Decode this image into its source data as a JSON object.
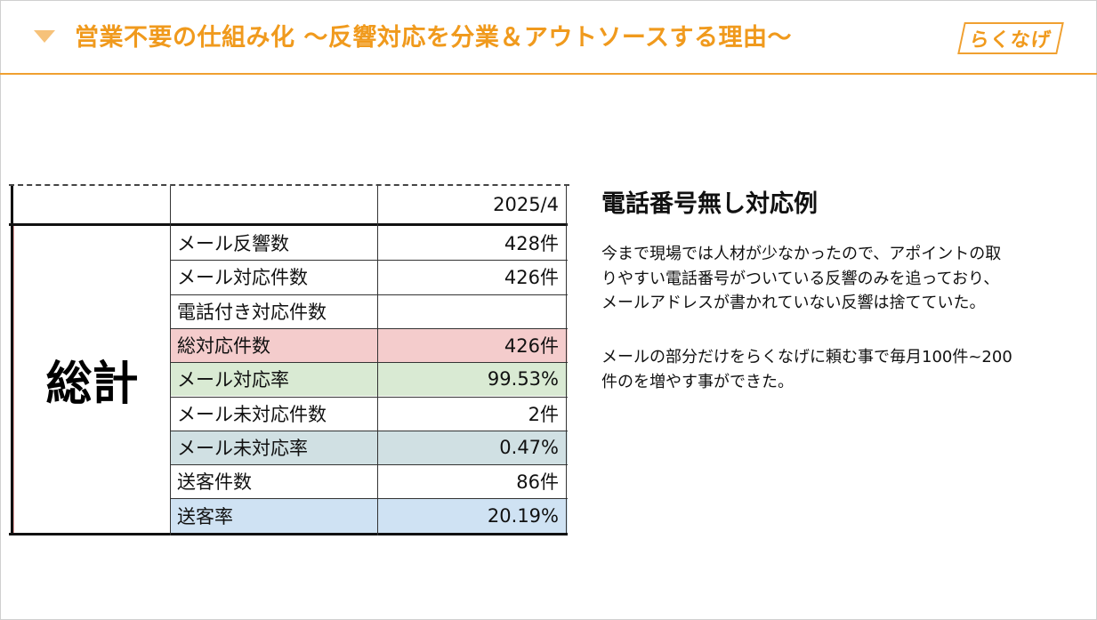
{
  "header": {
    "title": "営業不要の仕組み化 〜反響対応を分業＆アウトソースする理由〜",
    "logo_text": "らくなげ"
  },
  "table": {
    "period_header": "2025/4",
    "group_label": "総計",
    "rows": [
      {
        "label": "メール反響数",
        "value": "428件",
        "bg": "#ffffff"
      },
      {
        "label": "メール対応件数",
        "value": "426件",
        "bg": "#ffffff"
      },
      {
        "label": "電話付き対応件数",
        "value": "",
        "bg": "#ffffff"
      },
      {
        "label": "総対応件数",
        "value": "426件",
        "bg": "#f4cccc"
      },
      {
        "label": "メール対応率",
        "value": "99.53%",
        "bg": "#d9ead3"
      },
      {
        "label": "メール未対応件数",
        "value": "2件",
        "bg": "#ffffff"
      },
      {
        "label": "メール未対応率",
        "value": "0.47%",
        "bg": "#d0e0e3"
      },
      {
        "label": "送客件数",
        "value": "86件",
        "bg": "#ffffff"
      },
      {
        "label": "送客率",
        "value": "20.19%",
        "bg": "#cfe2f3"
      }
    ]
  },
  "right": {
    "title": "電話番号無し対応例",
    "para1_lines": [
      "今まで現場では人材が少なかったので、アポイントの取",
      "りやすい電話番号がついている反響のみを追っており、",
      "メールアドレスが書かれていない反響は捨てていた。"
    ],
    "para2_lines": [
      "メールの部分だけをらくなげに頼む事で毎月100件~200",
      "件のを増やす事ができた。"
    ]
  }
}
